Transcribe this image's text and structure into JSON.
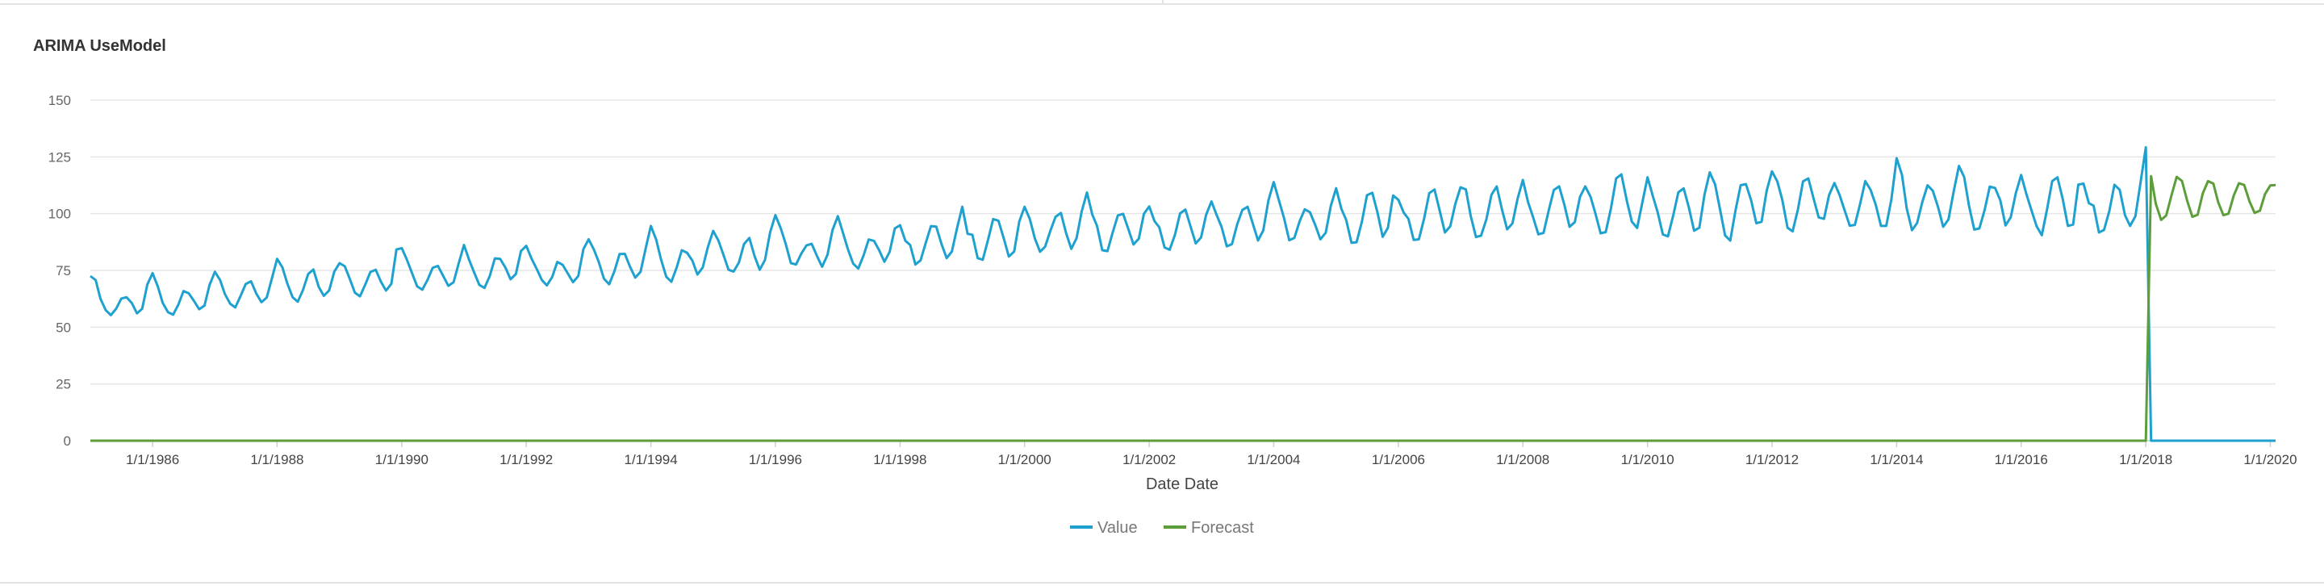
{
  "chart_data": {
    "type": "line",
    "title": "ARIMA UseModel",
    "xlabel": "Date Date",
    "ylabel": "",
    "ylim": [
      0,
      150
    ],
    "yticks": [
      0,
      25,
      50,
      75,
      100,
      125,
      150
    ],
    "xlim": [
      "1985-01-01",
      "2020-02-01"
    ],
    "xticks": [
      "1/1/1986",
      "1/1/1988",
      "1/1/1990",
      "1/1/1992",
      "1/1/1994",
      "1/1/1996",
      "1/1/1998",
      "1/1/2000",
      "1/1/2002",
      "1/1/2004",
      "1/1/2006",
      "1/1/2008",
      "1/1/2010",
      "1/1/2012",
      "1/1/2014",
      "1/1/2016",
      "1/1/2018",
      "1/1/2020"
    ],
    "grid": true,
    "legend_position": "bottom",
    "series": [
      {
        "name": "Value",
        "color": "#1fa1d0",
        "start": "1985-01-01",
        "frequency": "monthly",
        "values": [
          72.5,
          70.7,
          62.5,
          57.5,
          55.3,
          58.1,
          62.6,
          63.2,
          60.6,
          56.1,
          58.1,
          68.8,
          73.8,
          67.8,
          60.7,
          56.6,
          55.5,
          59.9,
          65.9,
          64.9,
          61.5,
          57.9,
          59.5,
          68.6,
          74.4,
          70.7,
          64.6,
          60.3,
          58.7,
          63.8,
          69.0,
          70.2,
          64.8,
          61.0,
          63.0,
          71.4,
          80.1,
          76.3,
          69.2,
          63.2,
          61.2,
          66.4,
          73.4,
          75.4,
          67.7,
          63.8,
          66.2,
          74.4,
          78.2,
          76.8,
          71.5,
          65.2,
          63.6,
          68.8,
          74.3,
          75.3,
          70.0,
          66.1,
          69.1,
          84.2,
          84.8,
          79.6,
          74.0,
          68.0,
          66.5,
          70.8,
          76.1,
          77.0,
          72.6,
          68.2,
          69.8,
          78.2,
          86.2,
          79.4,
          74.2,
          68.6,
          67.3,
          72.5,
          80.3,
          80.1,
          76.2,
          71.1,
          73.4,
          83.5,
          85.8,
          80.2,
          75.9,
          70.8,
          68.4,
          72.1,
          78.7,
          77.5,
          73.6,
          69.8,
          72.5,
          84.4,
          88.7,
          84.1,
          78.7,
          71.3,
          68.9,
          74.6,
          82.2,
          82.3,
          76.5,
          71.8,
          74.4,
          84.6,
          94.6,
          88.5,
          79.9,
          72.2,
          70.0,
          76.3,
          83.9,
          82.8,
          79.3,
          73.2,
          76.3,
          85.2,
          92.4,
          88.1,
          82.1,
          75.3,
          74.5,
          78.5,
          86.6,
          89.3,
          81.3,
          75.3,
          79.6,
          91.8,
          99.3,
          93.6,
          86.8,
          78.2,
          77.6,
          82.4,
          86.0,
          86.7,
          81.3,
          76.6,
          81.8,
          92.8,
          98.9,
          91.4,
          84.4,
          78.0,
          75.8,
          81.6,
          88.6,
          88.0,
          83.8,
          78.8,
          83.2,
          93.5,
          94.9,
          88.0,
          86.2,
          77.6,
          79.4,
          87.2,
          94.5,
          94.3,
          86.6,
          80.4,
          83.3,
          93.6,
          103.0,
          91.1,
          90.7,
          80.4,
          79.7,
          88.4,
          97.6,
          96.9,
          89.1,
          81.1,
          83.3,
          96.5,
          103.0,
          97.6,
          89.1,
          83.2,
          85.5,
          92.6,
          98.6,
          100.3,
          91.4,
          84.5,
          89.2,
          101.0,
          109.3,
          99.6,
          94.6,
          83.9,
          83.5,
          91.7,
          99.2,
          99.9,
          93.1,
          86.4,
          89.0,
          99.9,
          103.2,
          96.7,
          94.0,
          85.1,
          84.1,
          90.7,
          100.1,
          101.8,
          94.2,
          86.9,
          89.5,
          99.5,
          105.4,
          99.3,
          94.2,
          85.6,
          86.6,
          95.3,
          101.6,
          103.0,
          95.5,
          88.2,
          92.6,
          105.8,
          113.9,
          105.7,
          98.2,
          88.3,
          89.3,
          96.7,
          101.9,
          100.6,
          94.9,
          88.7,
          91.6,
          103.4,
          111.2,
          102.1,
          97.3,
          87.2,
          87.4,
          96.4,
          108.1,
          109.2,
          100.4,
          89.8,
          93.8,
          108.0,
          106.1,
          100.5,
          97.7,
          88.4,
          88.7,
          97.8,
          109.0,
          110.6,
          101.1,
          91.7,
          94.4,
          104.3,
          111.6,
          110.6,
          99.1,
          89.7,
          90.3,
          97.5,
          108.3,
          112.0,
          101.7,
          93.1,
          95.7,
          106.5,
          114.8,
          105.0,
          98.4,
          90.9,
          91.5,
          101.5,
          110.4,
          112.0,
          103.8,
          94.2,
          96.3,
          107.4,
          112.0,
          107.4,
          100.2,
          91.3,
          91.9,
          102.4,
          115.5,
          117.3,
          105.9,
          96.5,
          93.7,
          104.6,
          116.0,
          107.8,
          100.8,
          90.8,
          90.0,
          99.3,
          109.4,
          111.1,
          102.6,
          92.5,
          93.8,
          108.4,
          118.2,
          112.9,
          102.3,
          90.4,
          88.1,
          101.4,
          112.5,
          113.0,
          105.7,
          95.8,
          96.4,
          110.2,
          118.6,
          114.2,
          106.2,
          93.8,
          92.2,
          101.9,
          114.2,
          115.5,
          106.6,
          98.3,
          97.7,
          108.2,
          113.5,
          108.1,
          101.6,
          94.7,
          95.0,
          104.4,
          114.3,
          110.5,
          103.8,
          94.6,
          94.6,
          106.3,
          124.4,
          117.1,
          102.3,
          92.7,
          95.9,
          105.2,
          112.5,
          110.1,
          102.8,
          94.2,
          97.5,
          109.6,
          121.0,
          116.1,
          103.6,
          93.0,
          93.5,
          101.7,
          111.9,
          111.3,
          105.8,
          94.8,
          98.4,
          109.0,
          117.0,
          108.6,
          101.6,
          94.4,
          90.5,
          101.9,
          114.3,
          116.0,
          106.3,
          94.6,
          95.2,
          112.8,
          113.2,
          104.6,
          103.5,
          91.7,
          92.8,
          101.2,
          112.7,
          110.5,
          99.3,
          94.6,
          98.9,
          113.6,
          129.2,
          0,
          0,
          0,
          0,
          0,
          0,
          0,
          0,
          0,
          0,
          0,
          0,
          0,
          0,
          0,
          0,
          0,
          0,
          0,
          0,
          0,
          0,
          0,
          0,
          0
        ]
      },
      {
        "name": "Forecast",
        "color": "#5b9e3a",
        "start": "1985-01-01",
        "frequency": "monthly",
        "values": [
          0,
          0,
          0,
          0,
          0,
          0,
          0,
          0,
          0,
          0,
          0,
          0,
          0,
          0,
          0,
          0,
          0,
          0,
          0,
          0,
          0,
          0,
          0,
          0,
          0,
          0,
          0,
          0,
          0,
          0,
          0,
          0,
          0,
          0,
          0,
          0,
          0,
          0,
          0,
          0,
          0,
          0,
          0,
          0,
          0,
          0,
          0,
          0,
          0,
          0,
          0,
          0,
          0,
          0,
          0,
          0,
          0,
          0,
          0,
          0,
          0,
          0,
          0,
          0,
          0,
          0,
          0,
          0,
          0,
          0,
          0,
          0,
          0,
          0,
          0,
          0,
          0,
          0,
          0,
          0,
          0,
          0,
          0,
          0,
          0,
          0,
          0,
          0,
          0,
          0,
          0,
          0,
          0,
          0,
          0,
          0,
          0,
          0,
          0,
          0,
          0,
          0,
          0,
          0,
          0,
          0,
          0,
          0,
          0,
          0,
          0,
          0,
          0,
          0,
          0,
          0,
          0,
          0,
          0,
          0,
          0,
          0,
          0,
          0,
          0,
          0,
          0,
          0,
          0,
          0,
          0,
          0,
          0,
          0,
          0,
          0,
          0,
          0,
          0,
          0,
          0,
          0,
          0,
          0,
          0,
          0,
          0,
          0,
          0,
          0,
          0,
          0,
          0,
          0,
          0,
          0,
          0,
          0,
          0,
          0,
          0,
          0,
          0,
          0,
          0,
          0,
          0,
          0,
          0,
          0,
          0,
          0,
          0,
          0,
          0,
          0,
          0,
          0,
          0,
          0,
          0,
          0,
          0,
          0,
          0,
          0,
          0,
          0,
          0,
          0,
          0,
          0,
          0,
          0,
          0,
          0,
          0,
          0,
          0,
          0,
          0,
          0,
          0,
          0,
          0,
          0,
          0,
          0,
          0,
          0,
          0,
          0,
          0,
          0,
          0,
          0,
          0,
          0,
          0,
          0,
          0,
          0,
          0,
          0,
          0,
          0,
          0,
          0,
          0,
          0,
          0,
          0,
          0,
          0,
          0,
          0,
          0,
          0,
          0,
          0,
          0,
          0,
          0,
          0,
          0,
          0,
          0,
          0,
          0,
          0,
          0,
          0,
          0,
          0,
          0,
          0,
          0,
          0,
          0,
          0,
          0,
          0,
          0,
          0,
          0,
          0,
          0,
          0,
          0,
          0,
          0,
          0,
          0,
          0,
          0,
          0,
          0,
          0,
          0,
          0,
          0,
          0,
          0,
          0,
          0,
          0,
          0,
          0,
          0,
          0,
          0,
          0,
          0,
          0,
          0,
          0,
          0,
          0,
          0,
          0,
          0,
          0,
          0,
          0,
          0,
          0,
          0,
          0,
          0,
          0,
          0,
          0,
          0,
          0,
          0,
          0,
          0,
          0,
          0,
          0,
          0,
          0,
          0,
          0,
          0,
          0,
          0,
          0,
          0,
          0,
          0,
          0,
          0,
          0,
          0,
          0,
          0,
          0,
          0,
          0,
          0,
          0,
          0,
          0,
          0,
          0,
          0,
          0,
          0,
          0,
          0,
          0,
          0,
          0,
          0,
          0,
          0,
          0,
          0,
          0,
          0,
          0,
          0,
          0,
          0,
          0,
          0,
          0,
          0,
          0,
          0,
          0,
          0,
          0,
          0,
          0,
          0,
          0,
          0,
          0,
          0,
          0,
          0,
          0,
          0,
          0,
          0,
          0,
          0,
          0,
          0,
          0,
          0,
          0,
          0,
          0,
          0,
          116.5,
          104.3,
          97.2,
          99.2,
          108.2,
          116.2,
          114.4,
          105.6,
          98.6,
          99.5,
          108.9,
          114.3,
          113.2,
          105.1,
          99.3,
          100.0,
          108.0,
          113.4,
          112.6,
          105.4,
          100.3,
          101.3,
          108.6,
          112.4,
          112.6
        ]
      }
    ]
  }
}
